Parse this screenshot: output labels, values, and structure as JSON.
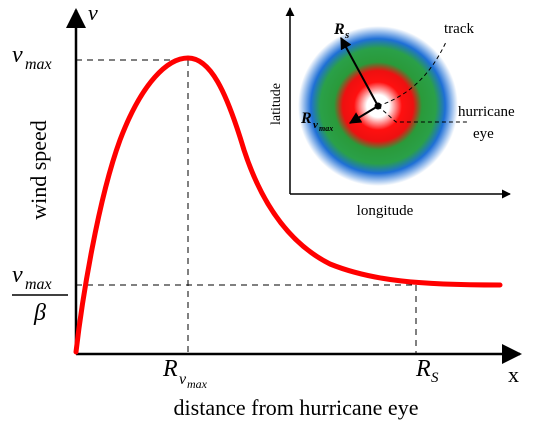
{
  "main_axes": {
    "y_label": "wind speed",
    "y_symbol": "v",
    "x_symbol": "x",
    "x_label": "distance from hurricane eye",
    "y_tick_vmax": {
      "base": "v",
      "sub": "max"
    },
    "y_tick_ratio": {
      "num_base": "v",
      "num_sub": "max",
      "den": "β"
    },
    "x_tick_rvmax": {
      "base": "R",
      "sub": "v",
      "subsub": "max"
    },
    "x_tick_rs": {
      "base": "R",
      "sub": "S"
    }
  },
  "inset": {
    "x_label": "longitude",
    "y_label": "latitude",
    "track_label": "track",
    "eye_label_1": "hurricane",
    "eye_label_2": "eye",
    "rs_label": {
      "base": "R",
      "sub": "s"
    },
    "rvmax_label": {
      "base": "R",
      "sub": "v",
      "subsub": "max"
    }
  },
  "colors": {
    "curve": "#ff0000",
    "axis": "#000000",
    "ring_outer": "#1e6fd6",
    "ring_mid": "#2a9a3a",
    "ring_inner": "#ff0000",
    "core": "#ffffff"
  }
}
